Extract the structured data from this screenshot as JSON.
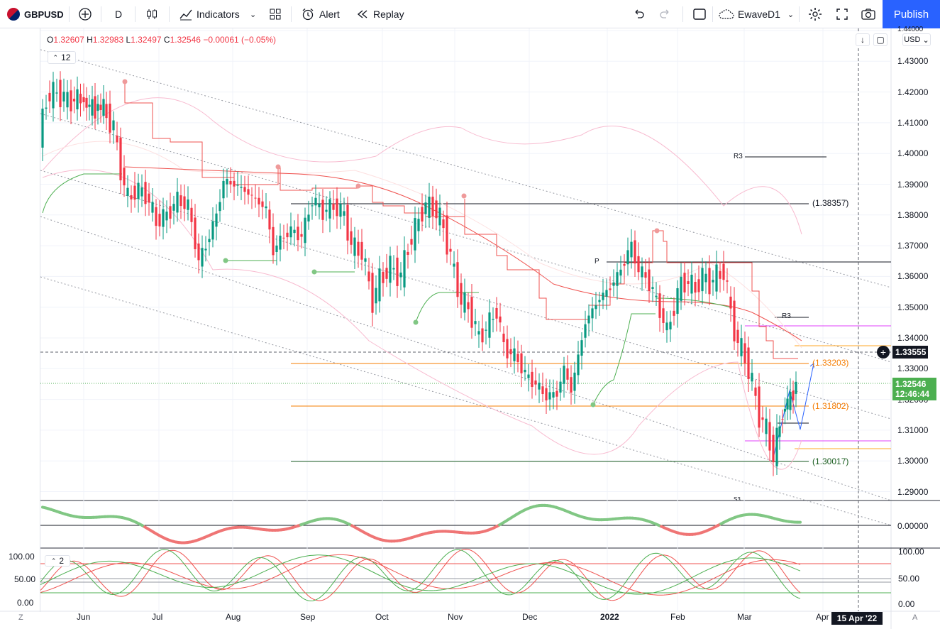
{
  "toolbar": {
    "symbol": "GBPUSD",
    "interval": "D",
    "indicators_label": "Indicators",
    "alert_label": "Alert",
    "replay_label": "Replay",
    "layout_name": "EwaveD1",
    "publish_label": "Publish"
  },
  "legend": {
    "o_label": "O",
    "o": "1.32607",
    "h_label": "H",
    "h": "1.32983",
    "l_label": "L",
    "l": "1.32497",
    "c_label": "C",
    "c": "1.32546",
    "change": "−0.00061 (−0.05%)",
    "indicator_count": "12",
    "pane2_count": "2"
  },
  "price_axis": {
    "currency": "USD",
    "labels": [
      "1.44000",
      "1.43000",
      "1.42000",
      "1.41000",
      "1.40000",
      "1.39000",
      "1.38000",
      "1.37000",
      "1.36000",
      "1.35000",
      "1.34000",
      "1.33000",
      "1.32000",
      "1.31000",
      "1.30000",
      "1.29000"
    ],
    "crosshair_price": "1.33555",
    "last_price": "1.32546",
    "countdown": "12:46:44"
  },
  "chart_labels": {
    "level_1": "(1.38357)",
    "level_2": "(1.33203)",
    "level_3": "(1.31802)",
    "level_4": "(1.30017)",
    "r3_upper": "R3",
    "r3_lower": "R3",
    "pivot": "P",
    "s3": "S3"
  },
  "osc_axis": {
    "labels": [
      "0.00000"
    ]
  },
  "stoch_axis": {
    "labels_left": [
      "100.00",
      "50.00",
      "0.00"
    ],
    "labels_right": [
      "100.00",
      "50.00",
      "0.00"
    ]
  },
  "time_axis": {
    "labels": [
      "Jun",
      "Jul",
      "Aug",
      "Sep",
      "Oct",
      "Nov",
      "Dec",
      "2022",
      "Feb",
      "Mar",
      "Apr"
    ],
    "crosshair_date": "15 Apr '22"
  },
  "colors": {
    "up": "#26a69a",
    "up_candle": "#089981",
    "down": "#f23645",
    "accent": "#2962ff",
    "last_tag": "#4caf50"
  },
  "chart_data": {
    "type": "candlestick",
    "symbol": "GBPUSD",
    "interval": "D",
    "ylim": [
      1.285,
      1.44
    ],
    "horizontal_levels": [
      1.38357,
      1.33203,
      1.31802,
      1.30017
    ],
    "last_close": 1.32546
  }
}
